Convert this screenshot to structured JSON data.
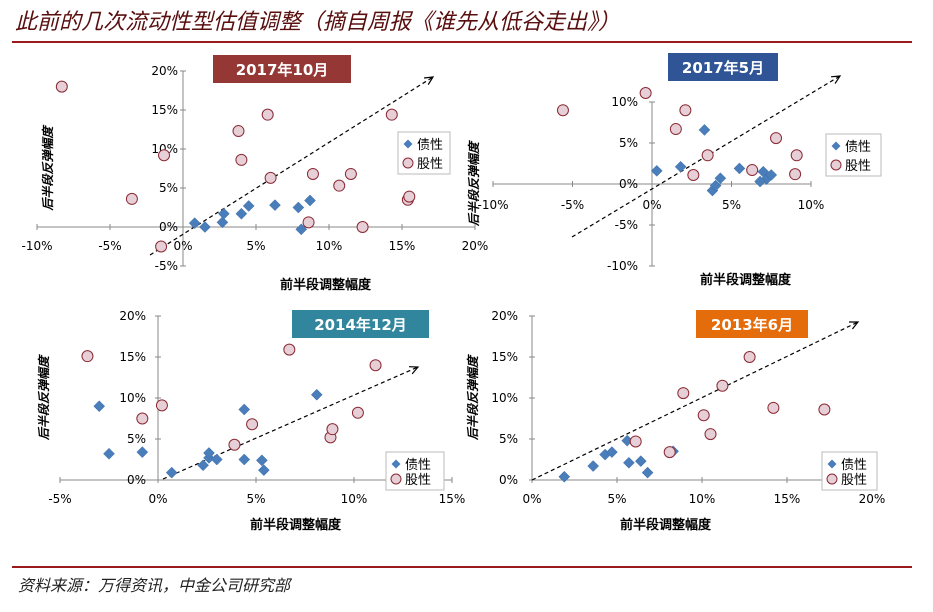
{
  "page_title": "此前的几次流动性型估值调整（摘自周报《谁先从低谷走出》）",
  "source": "资料来源：万得资讯，中金公司研究部",
  "colors": {
    "bond_marker": "#4a7ebb",
    "equity_marker_fill": "#e6cfd6",
    "equity_marker_stroke": "#8a2a35",
    "title_rule": "#9b1b1b"
  },
  "chart_data": [
    {
      "type": "scatter",
      "title": "2017年10月",
      "title_color": "#953735",
      "xlabel": "前半段调整幅度",
      "ylabel": "后半段反弹幅度",
      "xlim": [
        -10,
        20
      ],
      "ylim": [
        -5,
        20
      ],
      "xticks": [
        "-10%",
        "-5%",
        "0%",
        "5%",
        "10%",
        "15%",
        "20%"
      ],
      "yticks": [
        "-5%",
        "0%",
        "5%",
        "10%",
        "15%",
        "20%"
      ],
      "legend": [
        "债性",
        "股性"
      ],
      "legend_position": "right",
      "trend_arrow": true,
      "series": [
        {
          "name": "债性",
          "marker": "diamond",
          "points": [
            [
              0.8,
              0.5
            ],
            [
              1.5,
              0.0
            ],
            [
              2.7,
              0.6
            ],
            [
              2.8,
              1.7
            ],
            [
              4.0,
              1.7
            ],
            [
              4.5,
              2.7
            ],
            [
              6.3,
              2.8
            ],
            [
              7.9,
              2.5
            ],
            [
              8.1,
              -0.3
            ],
            [
              8.7,
              3.4
            ]
          ]
        },
        {
          "name": "股性",
          "marker": "circle",
          "points": [
            [
              -8.3,
              18.0
            ],
            [
              -3.5,
              3.6
            ],
            [
              -1.3,
              9.2
            ],
            [
              -1.5,
              -2.5
            ],
            [
              3.8,
              12.3
            ],
            [
              4.0,
              8.6
            ],
            [
              5.8,
              14.4
            ],
            [
              6.0,
              6.3
            ],
            [
              8.6,
              0.6
            ],
            [
              8.9,
              6.8
            ],
            [
              10.7,
              5.3
            ],
            [
              11.5,
              6.8
            ],
            [
              12.3,
              0.0
            ],
            [
              14.3,
              14.4
            ],
            [
              15.4,
              3.5
            ],
            [
              15.5,
              3.9
            ]
          ]
        }
      ]
    },
    {
      "type": "scatter",
      "title": "2017年5月",
      "title_color": "#2f5596",
      "xlabel": "前半段调整幅度",
      "ylabel": "后半段反弹幅度",
      "xlim": [
        -10,
        15
      ],
      "ylim": [
        -10,
        15
      ],
      "xticks": [
        "-10%",
        "-5%",
        "0%",
        "5%",
        "10%"
      ],
      "yticks": [
        "-10%",
        "-5%",
        "0%",
        "5%",
        "10%"
      ],
      "legend": [
        "债性",
        "股性"
      ],
      "legend_position": "right",
      "trend_arrow": true,
      "series": [
        {
          "name": "债性",
          "marker": "diamond",
          "points": [
            [
              0.3,
              1.6
            ],
            [
              1.8,
              2.1
            ],
            [
              3.3,
              6.6
            ],
            [
              3.8,
              -0.8
            ],
            [
              4.0,
              -0.2
            ],
            [
              4.3,
              0.7
            ],
            [
              5.5,
              1.9
            ],
            [
              7.0,
              1.5
            ],
            [
              7.2,
              0.6
            ],
            [
              7.5,
              1.1
            ],
            [
              6.8,
              0.3
            ]
          ]
        },
        {
          "name": "股性",
          "marker": "circle",
          "points": [
            [
              -5.6,
              9.0
            ],
            [
              -0.4,
              11.1
            ],
            [
              1.5,
              6.7
            ],
            [
              2.1,
              9.0
            ],
            [
              2.6,
              1.1
            ],
            [
              3.5,
              3.5
            ],
            [
              6.3,
              1.7
            ],
            [
              7.8,
              5.6
            ],
            [
              9.1,
              3.5
            ],
            [
              9.0,
              1.2
            ]
          ]
        }
      ]
    },
    {
      "type": "scatter",
      "title": "2014年12月",
      "title_color": "#31859c",
      "xlabel": "前半段调整幅度",
      "ylabel": "后半段反弹幅度",
      "xlim": [
        -5,
        15
      ],
      "ylim": [
        0,
        20
      ],
      "xticks": [
        "-5%",
        "0%",
        "5%",
        "10%",
        "15%"
      ],
      "yticks": [
        "0%",
        "5%",
        "10%",
        "15%",
        "20%"
      ],
      "legend": [
        "债性",
        "股性"
      ],
      "legend_position": "bottom-right",
      "trend_arrow": true,
      "series": [
        {
          "name": "债性",
          "marker": "diamond",
          "points": [
            [
              -3.0,
              9.0
            ],
            [
              -2.5,
              3.2
            ],
            [
              -0.8,
              3.4
            ],
            [
              0.7,
              0.9
            ],
            [
              2.3,
              1.8
            ],
            [
              2.6,
              2.7
            ],
            [
              2.6,
              3.3
            ],
            [
              3.0,
              2.5
            ],
            [
              4.4,
              8.6
            ],
            [
              4.4,
              2.5
            ],
            [
              5.3,
              2.4
            ],
            [
              5.4,
              1.2
            ],
            [
              8.1,
              10.4
            ]
          ]
        },
        {
          "name": "股性",
          "marker": "circle",
          "points": [
            [
              -3.6,
              15.1
            ],
            [
              -0.8,
              7.5
            ],
            [
              0.2,
              9.1
            ],
            [
              3.9,
              4.3
            ],
            [
              4.8,
              6.8
            ],
            [
              6.7,
              15.9
            ],
            [
              8.8,
              5.2
            ],
            [
              8.9,
              6.2
            ],
            [
              10.2,
              8.2
            ],
            [
              11.1,
              14.0
            ]
          ]
        }
      ]
    },
    {
      "type": "scatter",
      "title": "2013年6月",
      "title_color": "#e46c0a",
      "xlabel": "前半段调整幅度",
      "ylabel": "后半段反弹幅度",
      "xlim": [
        0,
        20
      ],
      "ylim": [
        0,
        20
      ],
      "xticks": [
        "0%",
        "5%",
        "10%",
        "15%",
        "20%"
      ],
      "yticks": [
        "0%",
        "5%",
        "10%",
        "15%",
        "20%"
      ],
      "legend": [
        "债性",
        "股性"
      ],
      "legend_position": "bottom-right",
      "trend_arrow": true,
      "series": [
        {
          "name": "债性",
          "marker": "diamond",
          "points": [
            [
              1.9,
              0.4
            ],
            [
              3.6,
              1.7
            ],
            [
              4.3,
              3.1
            ],
            [
              4.7,
              3.4
            ],
            [
              5.6,
              4.8
            ],
            [
              5.7,
              2.1
            ],
            [
              6.4,
              2.3
            ],
            [
              6.8,
              0.9
            ],
            [
              8.3,
              3.5
            ]
          ]
        },
        {
          "name": "股性",
          "marker": "circle",
          "points": [
            [
              6.1,
              4.7
            ],
            [
              8.1,
              3.4
            ],
            [
              8.9,
              10.6
            ],
            [
              10.1,
              7.9
            ],
            [
              10.5,
              5.6
            ],
            [
              11.2,
              11.5
            ],
            [
              12.8,
              15.0
            ],
            [
              14.2,
              8.8
            ],
            [
              17.2,
              8.6
            ]
          ]
        }
      ]
    }
  ]
}
